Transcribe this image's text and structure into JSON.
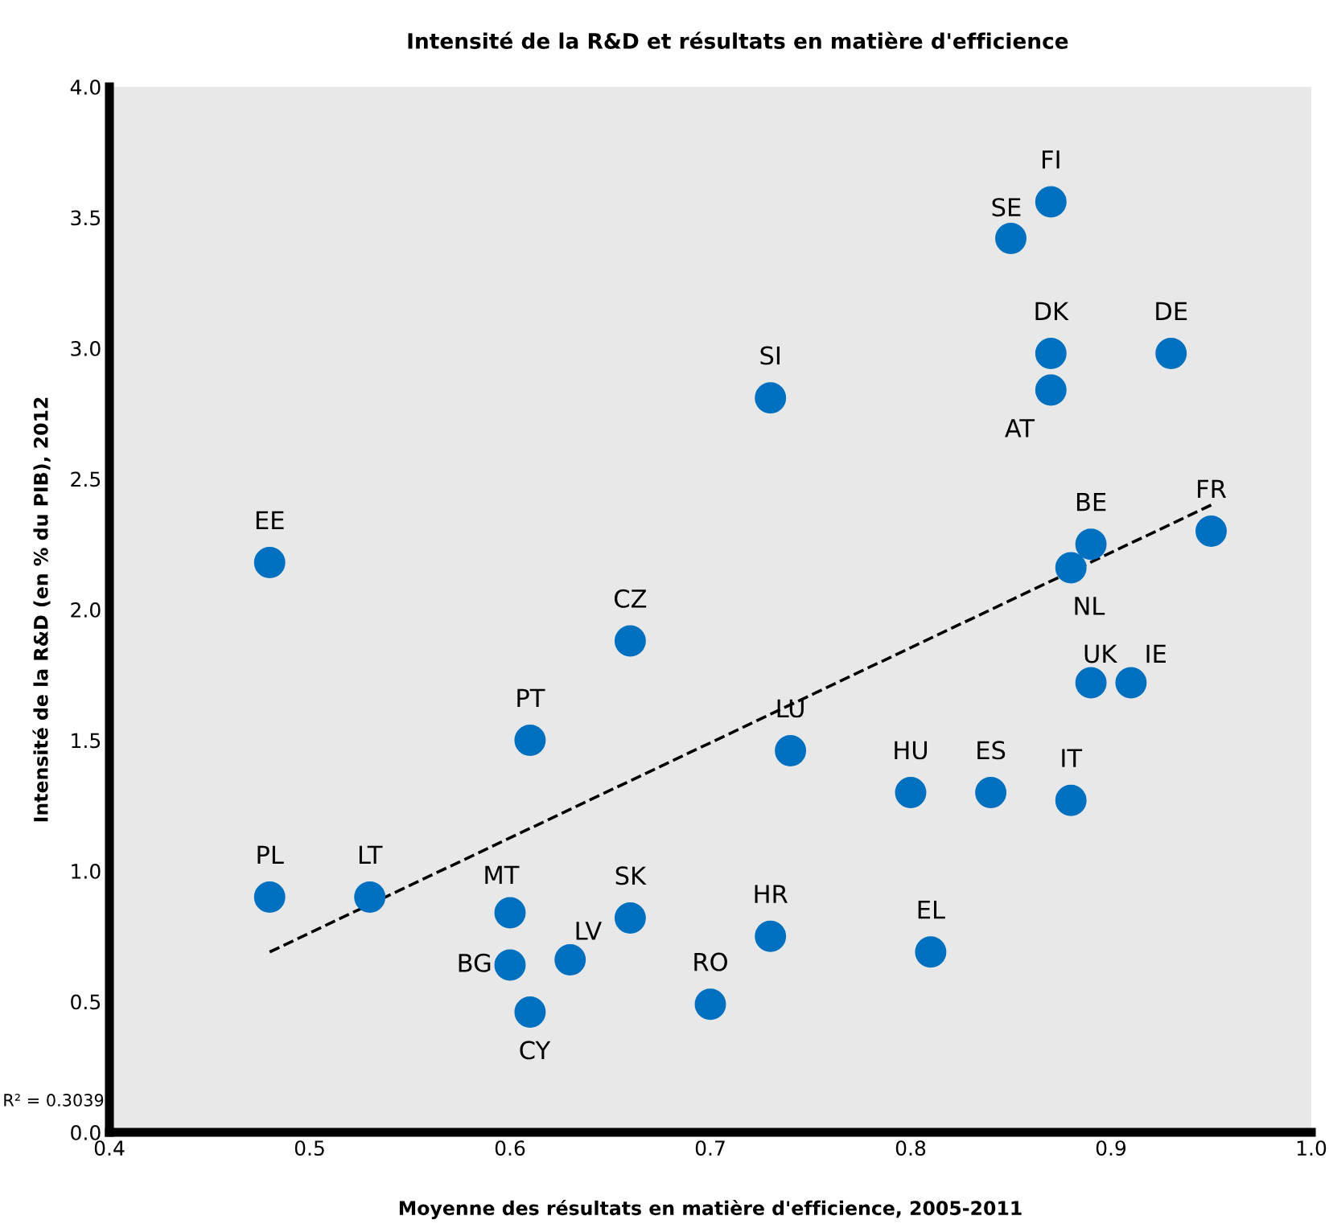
{
  "chart_data": {
    "type": "scatter",
    "title": "Intensité de la R&D et résultats en matière d'efficience",
    "xlabel": "Moyenne des résultats en matière d'efficience, 2005-2011",
    "ylabel": "Intensité de la R&D (en % du PIB), 2012",
    "xlim": [
      0.4,
      1.0
    ],
    "xticks": [
      {
        "value": 0.4,
        "label": "0.4"
      },
      {
        "value": 0.5,
        "label": "0.5"
      },
      {
        "value": 0.6,
        "label": "0.6"
      },
      {
        "value": 0.7,
        "label": "0.7"
      },
      {
        "value": 0.8,
        "label": "0.8"
      },
      {
        "value": 0.9,
        "label": "0.9"
      },
      {
        "value": 1.0,
        "label": "1.0"
      }
    ],
    "ylim": [
      0.0,
      4.0
    ],
    "yticks": [
      {
        "value": 0.0,
        "label": "0.0"
      },
      {
        "value": 0.5,
        "label": "0.5"
      },
      {
        "value": 1.0,
        "label": "1.0"
      },
      {
        "value": 1.5,
        "label": "1.5"
      },
      {
        "value": 2.0,
        "label": "2.0"
      },
      {
        "value": 2.5,
        "label": "2.5"
      },
      {
        "value": 3.0,
        "label": "3.0"
      },
      {
        "value": 3.5,
        "label": "3.5"
      },
      {
        "value": 4.0,
        "label": "4.0"
      }
    ],
    "grid": false,
    "legend": false,
    "marker": "circle",
    "annotations": [
      "R² = 0.3039"
    ],
    "series": [
      {
        "name": "EE",
        "color": "#0070c0",
        "x": [
          0.48
        ],
        "values": [
          2.18
        ]
      },
      {
        "name": "PL",
        "color": "#0070c0",
        "x": [
          0.48
        ],
        "values": [
          0.9
        ]
      },
      {
        "name": "LT",
        "color": "#0070c0",
        "x": [
          0.53
        ],
        "values": [
          0.9
        ]
      },
      {
        "name": "PT",
        "color": "#0070c0",
        "x": [
          0.61
        ],
        "values": [
          1.5
        ]
      },
      {
        "name": "CZ",
        "color": "#0070c0",
        "x": [
          0.66
        ],
        "values": [
          1.88
        ]
      },
      {
        "name": "MT",
        "color": "#0070c0",
        "x": [
          0.6
        ],
        "values": [
          0.84
        ]
      },
      {
        "name": "BG",
        "color": "#0070c0",
        "x": [
          0.6
        ],
        "values": [
          0.64
        ]
      },
      {
        "name": "CY",
        "color": "#0070c0",
        "x": [
          0.61
        ],
        "values": [
          0.46
        ]
      },
      {
        "name": "LV",
        "color": "#0070c0",
        "x": [
          0.63
        ],
        "values": [
          0.66
        ]
      },
      {
        "name": "SK",
        "color": "#0070c0",
        "x": [
          0.66
        ],
        "values": [
          0.82
        ]
      },
      {
        "name": "RO",
        "color": "#0070c0",
        "x": [
          0.7
        ],
        "values": [
          0.49
        ]
      },
      {
        "name": "HR",
        "color": "#0070c0",
        "x": [
          0.73
        ],
        "values": [
          0.75
        ]
      },
      {
        "name": "SI",
        "color": "#0070c0",
        "x": [
          0.73
        ],
        "values": [
          2.81
        ]
      },
      {
        "name": "LU",
        "color": "#0070c0",
        "x": [
          0.74
        ],
        "values": [
          1.46
        ]
      },
      {
        "name": "HU",
        "color": "#0070c0",
        "x": [
          0.8
        ],
        "values": [
          1.3
        ]
      },
      {
        "name": "EL",
        "color": "#0070c0",
        "x": [
          0.81
        ],
        "values": [
          0.69
        ]
      },
      {
        "name": "ES",
        "color": "#0070c0",
        "x": [
          0.84
        ],
        "values": [
          1.3
        ]
      },
      {
        "name": "IT",
        "color": "#0070c0",
        "x": [
          0.88
        ],
        "values": [
          1.27
        ]
      },
      {
        "name": "SE",
        "color": "#0070c0",
        "x": [
          0.85
        ],
        "values": [
          3.42
        ]
      },
      {
        "name": "FI",
        "color": "#0070c0",
        "x": [
          0.87
        ],
        "values": [
          3.56
        ]
      },
      {
        "name": "DK",
        "color": "#0070c0",
        "x": [
          0.87
        ],
        "values": [
          2.98
        ]
      },
      {
        "name": "AT",
        "color": "#0070c0",
        "x": [
          0.87
        ],
        "values": [
          2.84
        ]
      },
      {
        "name": "DE",
        "color": "#0070c0",
        "x": [
          0.93
        ],
        "values": [
          2.98
        ]
      },
      {
        "name": "BE",
        "color": "#0070c0",
        "x": [
          0.89
        ],
        "values": [
          2.25
        ]
      },
      {
        "name": "NL",
        "color": "#0070c0",
        "x": [
          0.88
        ],
        "values": [
          2.16
        ]
      },
      {
        "name": "FR",
        "color": "#0070c0",
        "x": [
          0.95
        ],
        "values": [
          2.3
        ]
      },
      {
        "name": "UK",
        "color": "#0070c0",
        "x": [
          0.89
        ],
        "values": [
          1.72
        ]
      },
      {
        "name": "IE",
        "color": "#0070c0",
        "x": [
          0.91
        ],
        "values": [
          1.72
        ]
      },
      {
        "type": "line",
        "color": "#000000",
        "line_style": "dashed",
        "marker": "none",
        "x": [
          0.48,
          0.95
        ],
        "values": [
          0.69,
          2.4
        ]
      }
    ]
  }
}
